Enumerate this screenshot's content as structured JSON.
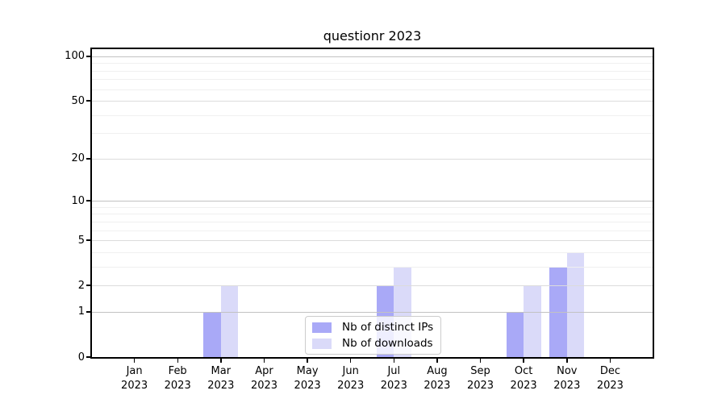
{
  "chart_data": {
    "type": "bar",
    "title": "questionr 2023",
    "categories": [
      "Jan 2023",
      "Feb 2023",
      "Mar 2023",
      "Apr 2023",
      "May 2023",
      "Jun 2023",
      "Jul 2023",
      "Aug 2023",
      "Sep 2023",
      "Oct 2023",
      "Nov 2023",
      "Dec 2023"
    ],
    "series": [
      {
        "name": "Nb of distinct IPs",
        "color": "#a9a9f7",
        "values": [
          0,
          0,
          1,
          0,
          0,
          0,
          2,
          0,
          0,
          1,
          3,
          0
        ]
      },
      {
        "name": "Nb of downloads",
        "color": "#dadaf9",
        "values": [
          0,
          0,
          2,
          0,
          0,
          0,
          3,
          0,
          0,
          2,
          4,
          0
        ]
      }
    ],
    "xlabel": "",
    "ylabel": "",
    "yscale": "log1p",
    "ylim": [
      0,
      113
    ],
    "yticks": [
      0,
      1,
      2,
      5,
      10,
      20,
      50,
      100
    ],
    "minor_yticks": [
      3,
      4,
      6,
      7,
      8,
      9,
      30,
      40,
      60,
      70,
      80,
      90
    ],
    "grid": true,
    "legend_position": "lower center",
    "colors": {
      "decade_grid": "#c2c2c2",
      "major_grid": "#dcdcdc",
      "minor_grid": "#f0f0f0",
      "axis": "#000000",
      "text": "#000000"
    }
  }
}
